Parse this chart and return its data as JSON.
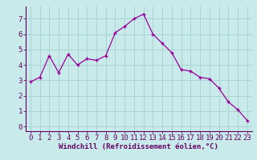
{
  "x": [
    0,
    1,
    2,
    3,
    4,
    5,
    6,
    7,
    8,
    9,
    10,
    11,
    12,
    13,
    14,
    15,
    16,
    17,
    18,
    19,
    20,
    21,
    22,
    23
  ],
  "y": [
    2.9,
    3.2,
    4.6,
    3.5,
    4.7,
    4.0,
    4.4,
    4.3,
    4.6,
    6.1,
    6.5,
    7.0,
    7.3,
    6.0,
    5.4,
    4.8,
    3.7,
    3.6,
    3.2,
    3.1,
    2.5,
    1.6,
    1.1,
    0.4
  ],
  "line_color": "#990099",
  "marker": "+",
  "bg_color": "#c8eaea",
  "grid_color": "#aad4d4",
  "xlabel": "Windchill (Refroidissement éolien,°C)",
  "xlim": [
    -0.5,
    23.5
  ],
  "ylim": [
    -0.3,
    7.8
  ],
  "xticks": [
    0,
    1,
    2,
    3,
    4,
    5,
    6,
    7,
    8,
    9,
    10,
    11,
    12,
    13,
    14,
    15,
    16,
    17,
    18,
    19,
    20,
    21,
    22,
    23
  ],
  "yticks": [
    0,
    1,
    2,
    3,
    4,
    5,
    6,
    7
  ],
  "xlabel_fontsize": 6.5,
  "tick_fontsize": 6.5,
  "axis_color": "#660066"
}
